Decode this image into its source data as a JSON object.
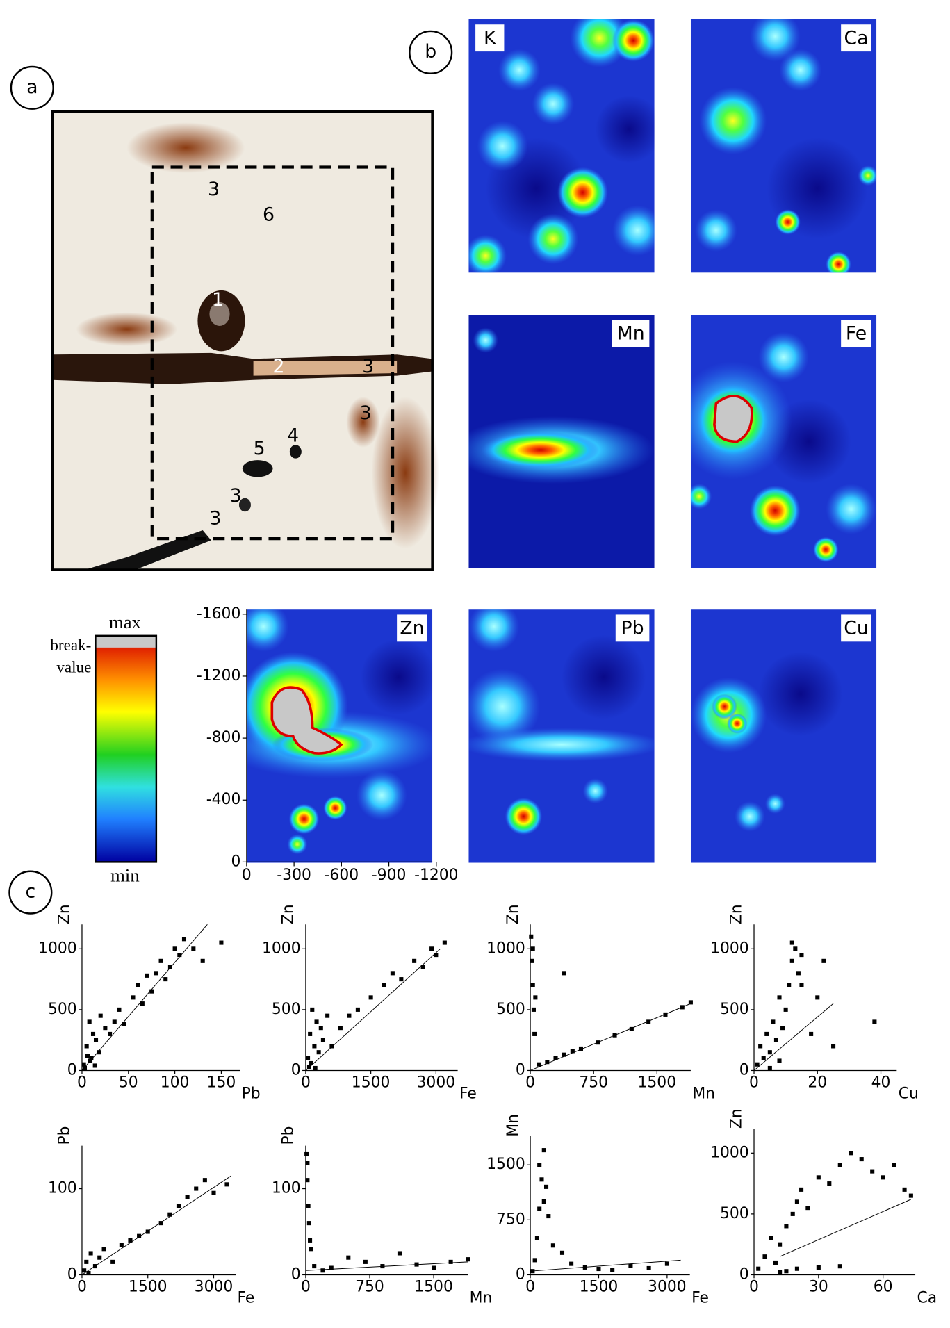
{
  "panels": {
    "a": "a",
    "b": "b",
    "c": "c"
  },
  "photo_labels": [
    "3",
    "6",
    "1",
    "2",
    "3",
    "3",
    "4",
    "5",
    "3",
    "3"
  ],
  "maps": [
    {
      "label": "K"
    },
    {
      "label": "Ca"
    },
    {
      "label": "Mn"
    },
    {
      "label": "Fe"
    },
    {
      "label": "Zn"
    },
    {
      "label": "Pb"
    },
    {
      "label": "Cu"
    }
  ],
  "map_axes": {
    "xlim": [
      0,
      -1175
    ],
    "xticks": [
      0,
      -300,
      -600,
      -900,
      -1200
    ],
    "ylim": [
      0,
      -1630
    ],
    "yticks": [
      -1600,
      -1200,
      -800,
      -400,
      0
    ]
  },
  "colorbar": {
    "max": "max",
    "break_lines": [
      "break-",
      "value"
    ],
    "min": "min"
  },
  "chart_data": [
    {
      "type": "scatter",
      "x_label": "Pb",
      "y_label": "Zn",
      "xlim": [
        0,
        170
      ],
      "ylim": [
        0,
        1200
      ],
      "xticks": [
        0,
        50,
        100,
        150
      ],
      "yticks": [
        0,
        500,
        1000
      ],
      "color": "#000000",
      "x": [
        2,
        5,
        8,
        10,
        12,
        15,
        18,
        20,
        25,
        30,
        35,
        40,
        45,
        55,
        60,
        65,
        70,
        75,
        80,
        85,
        90,
        95,
        100,
        105,
        110,
        120,
        130,
        150,
        3,
        6,
        9,
        14
      ],
      "y": [
        50,
        200,
        400,
        100,
        300,
        250,
        150,
        450,
        350,
        300,
        400,
        500,
        380,
        600,
        700,
        550,
        780,
        650,
        800,
        900,
        750,
        850,
        1000,
        950,
        1080,
        1000,
        900,
        1050,
        20,
        120,
        80,
        40
      ],
      "fit": {
        "x": [
          0,
          135
        ],
        "y": [
          0,
          1200
        ]
      }
    },
    {
      "type": "scatter",
      "x_label": "Fe",
      "y_label": "Zn",
      "xlim": [
        0,
        3500
      ],
      "ylim": [
        0,
        1200
      ],
      "xticks": [
        0,
        1500,
        3000
      ],
      "yticks": [
        0,
        500,
        1000
      ],
      "color": "#000000",
      "x": [
        50,
        100,
        150,
        200,
        250,
        300,
        350,
        400,
        500,
        600,
        800,
        1000,
        1200,
        1500,
        1800,
        2000,
        2200,
        2500,
        2700,
        2900,
        3000,
        3200,
        80,
        120,
        220
      ],
      "y": [
        100,
        300,
        500,
        200,
        400,
        150,
        350,
        250,
        450,
        200,
        350,
        450,
        500,
        600,
        700,
        800,
        750,
        900,
        850,
        1000,
        950,
        1050,
        30,
        60,
        20
      ],
      "fit": {
        "x": [
          0,
          3100
        ],
        "y": [
          0,
          1000
        ]
      }
    },
    {
      "type": "scatter",
      "x_label": "Mn",
      "y_label": "Zn",
      "xlim": [
        0,
        1900
      ],
      "ylim": [
        0,
        1200
      ],
      "xticks": [
        0,
        750,
        1500
      ],
      "yticks": [
        0,
        500,
        1000
      ],
      "color": "#000000",
      "x": [
        10,
        20,
        30,
        40,
        50,
        100,
        200,
        300,
        400,
        500,
        600,
        800,
        1000,
        1200,
        1400,
        1600,
        1800,
        1900,
        30,
        60,
        400
      ],
      "y": [
        1100,
        900,
        700,
        500,
        300,
        50,
        70,
        100,
        130,
        160,
        180,
        230,
        290,
        340,
        400,
        460,
        520,
        560,
        1000,
        600,
        800
      ],
      "fit": {
        "x": [
          0,
          1900
        ],
        "y": [
          0,
          550
        ]
      }
    },
    {
      "type": "scatter",
      "x_label": "Cu",
      "y_label": "Zn",
      "xlim": [
        0,
        45
      ],
      "ylim": [
        0,
        1200
      ],
      "xticks": [
        0,
        20,
        40
      ],
      "yticks": [
        0,
        500,
        1000
      ],
      "color": "#000000",
      "x": [
        1,
        2,
        3,
        4,
        5,
        6,
        7,
        8,
        9,
        10,
        11,
        12,
        13,
        14,
        15,
        18,
        20,
        22,
        25,
        38,
        5,
        8,
        12,
        15
      ],
      "y": [
        50,
        200,
        100,
        300,
        150,
        400,
        250,
        600,
        350,
        500,
        700,
        900,
        1000,
        800,
        950,
        300,
        600,
        900,
        200,
        400,
        20,
        80,
        1050,
        700
      ],
      "fit": {
        "x": [
          0,
          25
        ],
        "y": [
          0,
          550
        ]
      }
    },
    {
      "type": "scatter",
      "x_label": "Fe",
      "y_label": "Pb",
      "xlim": [
        0,
        3500
      ],
      "ylim": [
        0,
        150
      ],
      "xticks": [
        0,
        1500,
        3000
      ],
      "yticks": [
        0,
        100
      ],
      "color": "#000000",
      "x": [
        50,
        100,
        150,
        200,
        300,
        400,
        500,
        700,
        900,
        1100,
        1300,
        1500,
        1800,
        2000,
        2200,
        2400,
        2600,
        2800,
        3000,
        3300
      ],
      "y": [
        5,
        15,
        2,
        25,
        10,
        20,
        30,
        15,
        35,
        40,
        45,
        50,
        60,
        70,
        80,
        90,
        100,
        110,
        95,
        105
      ],
      "fit": {
        "x": [
          0,
          3400
        ],
        "y": [
          0,
          115
        ]
      }
    },
    {
      "type": "scatter",
      "x_label": "Mn",
      "y_label": "Pb",
      "xlim": [
        0,
        1900
      ],
      "ylim": [
        0,
        150
      ],
      "xticks": [
        0,
        750,
        1500
      ],
      "yticks": [
        0,
        100
      ],
      "color": "#000000",
      "x": [
        10,
        20,
        30,
        40,
        50,
        100,
        200,
        300,
        500,
        700,
        900,
        1100,
        1300,
        1500,
        1700,
        1900,
        20,
        60
      ],
      "y": [
        140,
        110,
        80,
        60,
        40,
        10,
        5,
        8,
        20,
        15,
        10,
        25,
        12,
        8,
        15,
        18,
        130,
        30
      ],
      "fit": {
        "x": [
          0,
          1900
        ],
        "y": [
          5,
          15
        ]
      }
    },
    {
      "type": "scatter",
      "x_label": "Fe",
      "y_label": "Mn",
      "xlim": [
        0,
        3500
      ],
      "ylim": [
        0,
        1900
      ],
      "xticks": [
        0,
        1500,
        3000
      ],
      "yticks": [
        0,
        750,
        1500
      ],
      "color": "#000000",
      "x": [
        100,
        150,
        200,
        250,
        300,
        350,
        400,
        500,
        700,
        900,
        1200,
        1500,
        1800,
        2200,
        2600,
        3000,
        200,
        300,
        50
      ],
      "y": [
        200,
        500,
        900,
        1300,
        1700,
        1200,
        800,
        400,
        300,
        150,
        100,
        80,
        70,
        120,
        90,
        150,
        1500,
        1000,
        50
      ],
      "fit": {
        "x": [
          0,
          3300
        ],
        "y": [
          50,
          200
        ]
      }
    },
    {
      "type": "scatter",
      "x_label": "Ca",
      "y_label": "Zn",
      "xlim": [
        0,
        75
      ],
      "ylim": [
        0,
        1200
      ],
      "xticks": [
        0,
        30,
        60
      ],
      "yticks": [
        0,
        500,
        1000
      ],
      "color": "#000000",
      "x": [
        2,
        5,
        8,
        10,
        12,
        15,
        18,
        20,
        22,
        25,
        30,
        35,
        40,
        45,
        50,
        55,
        60,
        65,
        70,
        73,
        12,
        15,
        20,
        30,
        40
      ],
      "y": [
        50,
        150,
        300,
        100,
        250,
        400,
        500,
        600,
        700,
        550,
        800,
        750,
        900,
        1000,
        950,
        850,
        800,
        900,
        700,
        650,
        20,
        30,
        50,
        60,
        70
      ],
      "fit": {
        "x": [
          12,
          73
        ],
        "y": [
          150,
          620
        ]
      }
    }
  ]
}
